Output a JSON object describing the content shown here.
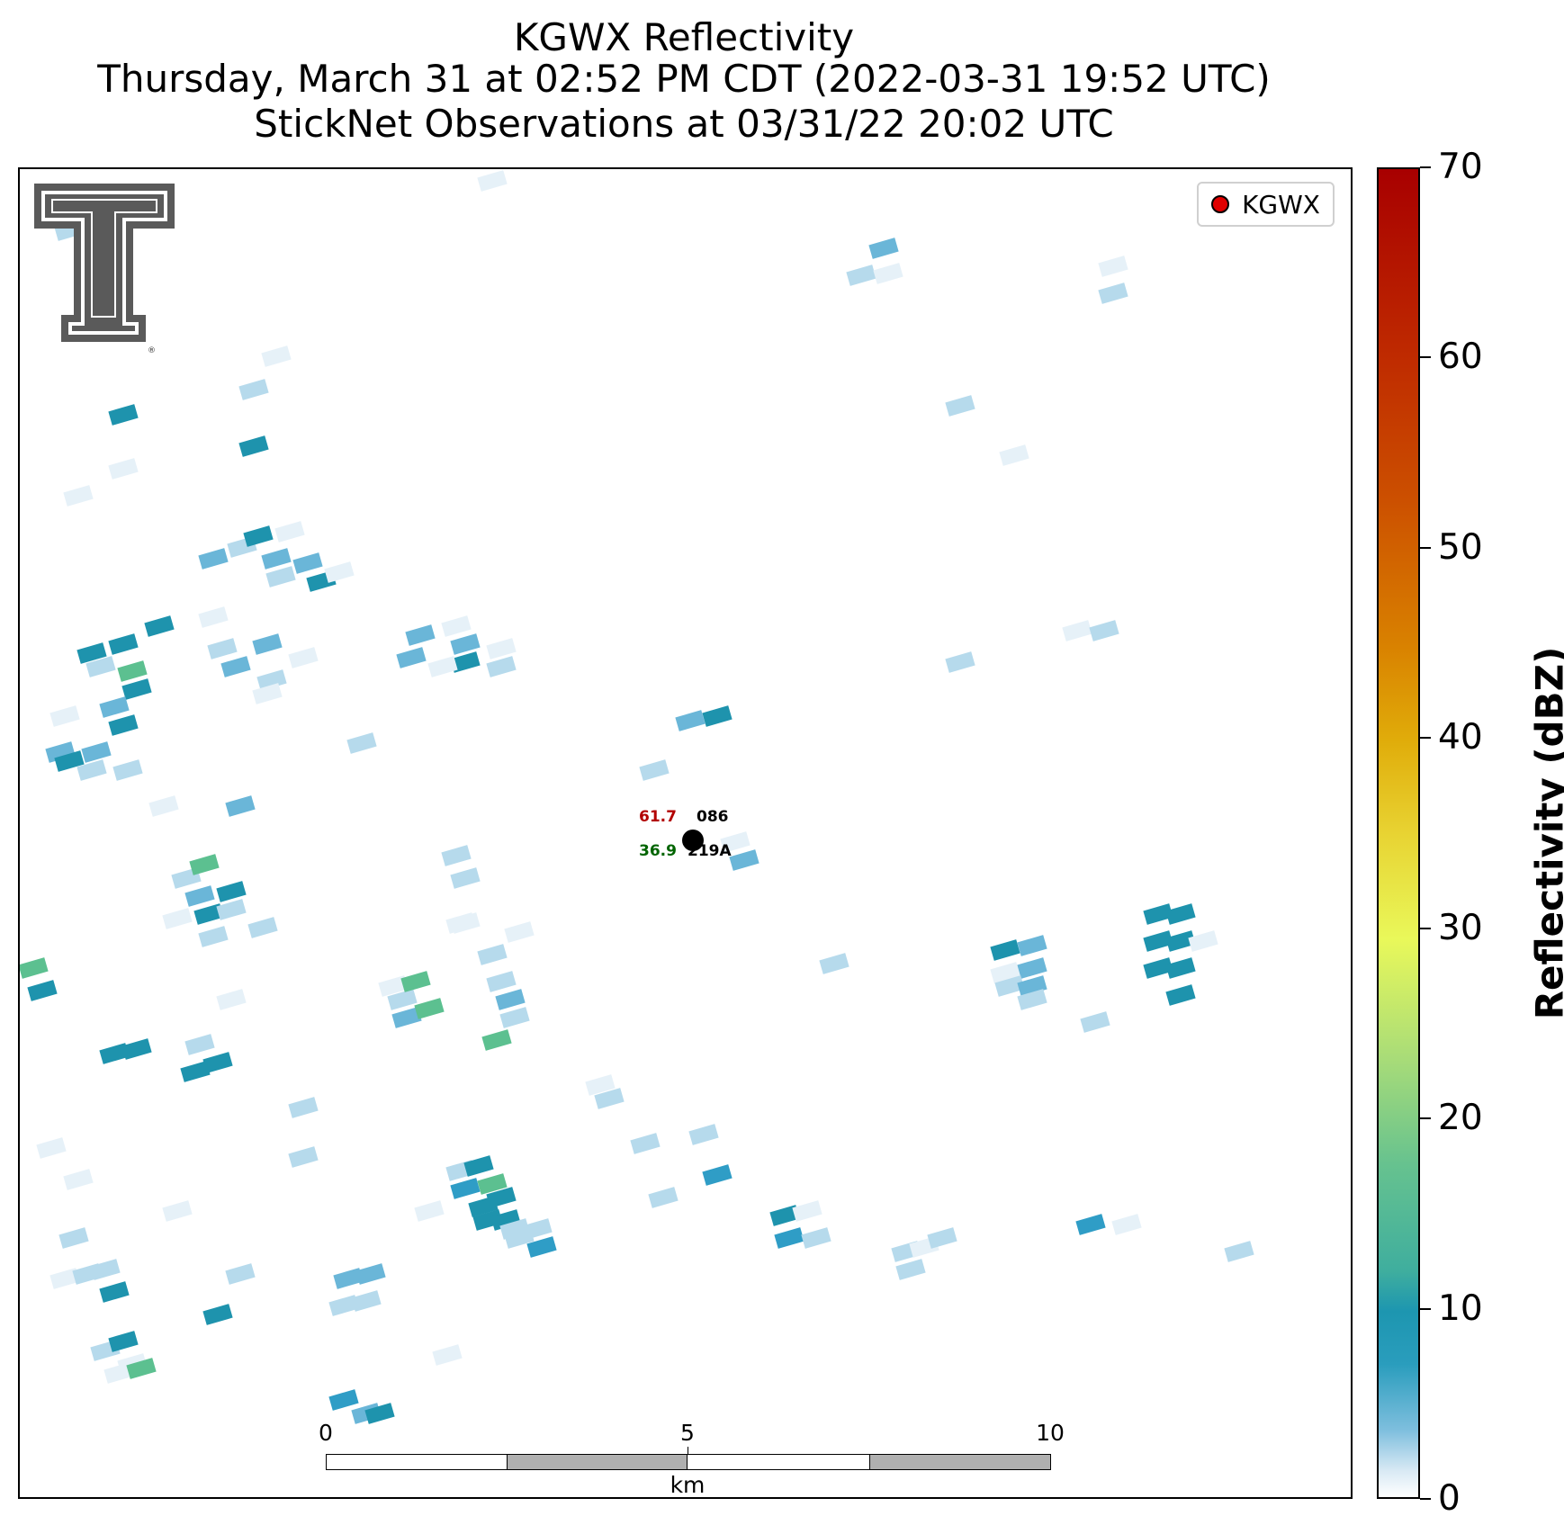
{
  "title": {
    "line1": "KGWX Reflectivity",
    "line2": "Thursday, March 31 at 02:52 PM CDT (2022-03-31 19:52 UTC)",
    "line3": "StickNet Observations at 03/31/22 20:02 UTC"
  },
  "legend": {
    "label": "KGWX",
    "marker_color": "#e00000"
  },
  "station": {
    "temperature": "61.7",
    "dewpoint": "36.9",
    "id_top": "086",
    "id_bottom": "219A",
    "temperature_color": "#b20000",
    "dewpoint_color": "#006400"
  },
  "scale_bar": {
    "labels": [
      "0",
      "5",
      "10"
    ],
    "unit": "km"
  },
  "colorbar": {
    "label": "Reflectivity (dBZ)",
    "ticks": [
      "0",
      "10",
      "20",
      "30",
      "40",
      "50",
      "60",
      "70"
    ],
    "min": 0,
    "max": 70
  },
  "logo": {
    "name": "Texas Tech double-T logo"
  },
  "colors": {
    "pale": "#e6f1f8",
    "light": "#b6daec",
    "mid": "#6ab6d8",
    "blue": "#2f9dc6",
    "teal": "#1e93ad",
    "green": "#5cc090"
  }
}
